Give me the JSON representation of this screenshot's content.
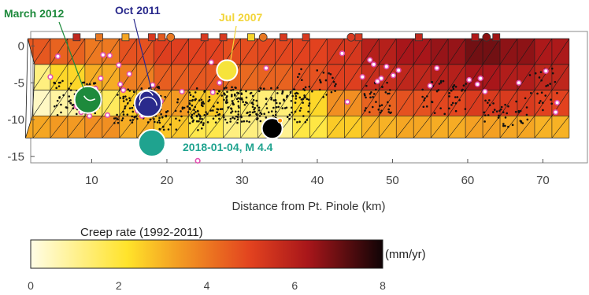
{
  "chart_data": {
    "type": "heatmap",
    "title": "",
    "xlabel": "Distance from Pt. Pinole (km)",
    "ylabel": "",
    "xlim": [
      1,
      74
    ],
    "ylim": [
      -16,
      1.5
    ],
    "x_ticks": [
      "10",
      "20",
      "30",
      "40",
      "50",
      "60",
      "70"
    ],
    "y_ticks": [
      "0",
      "-5",
      "-10",
      "-15"
    ],
    "colorbar": {
      "title": "Creep rate (1992-2011)",
      "unit": "(mm/yr)",
      "range": [
        0,
        8
      ],
      "ticks": [
        "0",
        "2",
        "4",
        "6",
        "8"
      ],
      "stops": [
        {
          "value": 0,
          "color": "#fffde6"
        },
        {
          "value": 2.2,
          "color": "#ffe32a"
        },
        {
          "value": 3.4,
          "color": "#f39a22"
        },
        {
          "value": 5.0,
          "color": "#e2421f"
        },
        {
          "value": 6.3,
          "color": "#a8161a"
        },
        {
          "value": 8,
          "color": "#100406"
        }
      ]
    },
    "fault_grid": {
      "columns_x": [
        4.5,
        9.1,
        13.7,
        18.3,
        22.9,
        27.5,
        32.1,
        36.7,
        41.3,
        45.9,
        50.5,
        55.1,
        59.7,
        64.3,
        68.9,
        73.5
      ],
      "row_edges_depth": [
        1,
        -2.5,
        -6,
        -9.5,
        -12.5
      ],
      "creep_rate": [
        [
          4.6,
          4.4,
          4.0,
          4.7,
          5.1,
          5.0,
          4.8,
          4.9,
          5.0,
          5.3,
          6.0,
          6.3,
          6.5,
          6.9,
          6.6,
          6.2
        ],
        [
          1.2,
          2.4,
          3.1,
          3.9,
          4.5,
          4.6,
          4.3,
          4.4,
          4.7,
          5.1,
          5.6,
          5.8,
          6.0,
          6.3,
          6.1,
          5.8
        ],
        [
          0.4,
          0.8,
          1.6,
          2.6,
          3.4,
          2.6,
          1.5,
          1.3,
          2.4,
          3.6,
          4.4,
          4.7,
          4.9,
          5.2,
          5.2,
          5.0
        ],
        [
          3.2,
          3.4,
          3.6,
          3.1,
          2.7,
          1.8,
          1.2,
          1.0,
          1.9,
          2.6,
          3.0,
          3.2,
          3.1,
          3.3,
          3.2,
          3.0
        ]
      ]
    },
    "surface_markers": [
      {
        "x": 8,
        "shape": "square",
        "color": "#c0281e"
      },
      {
        "x": 11,
        "shape": "square",
        "color": "#e87722"
      },
      {
        "x": 14.5,
        "shape": "square",
        "color": "#f6a623"
      },
      {
        "x": 18,
        "shape": "square",
        "color": "#d93a20"
      },
      {
        "x": 19.3,
        "shape": "square",
        "color": "#e25a20"
      },
      {
        "x": 20.5,
        "shape": "circle",
        "color": "#e87722"
      },
      {
        "x": 25,
        "shape": "square",
        "color": "#d83a20"
      },
      {
        "x": 27.5,
        "shape": "square",
        "color": "#d83a20"
      },
      {
        "x": 31.2,
        "shape": "square",
        "color": "#f7d52b"
      },
      {
        "x": 32.8,
        "shape": "circle",
        "color": "#e87722"
      },
      {
        "x": 35.5,
        "shape": "square",
        "color": "#d83a20"
      },
      {
        "x": 38.5,
        "shape": "square",
        "color": "#d83a20"
      },
      {
        "x": 44.5,
        "shape": "circle",
        "color": "#d83a20"
      },
      {
        "x": 45.5,
        "shape": "square",
        "color": "#d83a20"
      },
      {
        "x": 53.5,
        "shape": "square",
        "color": "#c0281e"
      },
      {
        "x": 61,
        "shape": "square",
        "color": "#b01818"
      },
      {
        "x": 62.5,
        "shape": "circle",
        "color": "#8a1010"
      },
      {
        "x": 63.8,
        "shape": "square",
        "color": "#a01414"
      }
    ],
    "events": [
      {
        "label": "March 2012",
        "x": 9.5,
        "depth": -7.3,
        "r": 17,
        "color": "#1e8a3c"
      },
      {
        "label": "Oct 2011",
        "x": 17.5,
        "depth": -7.8,
        "r": 17,
        "color": "#2a2a8c"
      },
      {
        "label": "Jul 2007",
        "x": 28.0,
        "depth": -3.3,
        "r": 13,
        "color": "#f6e33a"
      },
      {
        "label": "2018-01-04, M 4.4",
        "x": 18.0,
        "depth": -13.2,
        "r": 17,
        "color": "#1fa38f"
      },
      {
        "label": "",
        "x": 34.0,
        "depth": -11.2,
        "r": 13,
        "color": "#000000"
      }
    ]
  }
}
